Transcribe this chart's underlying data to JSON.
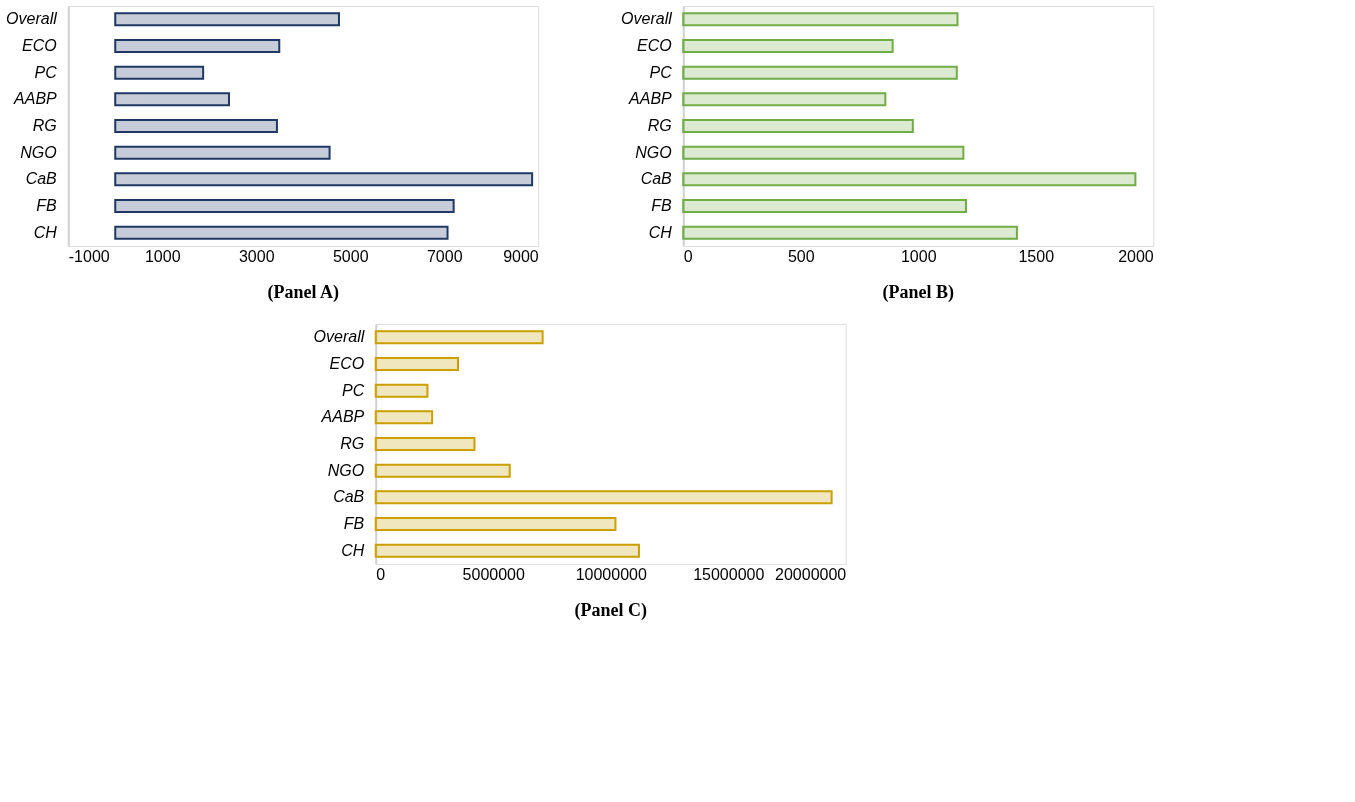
{
  "chart_data": [
    {
      "type": "bar",
      "orientation": "horizontal",
      "annotations": [
        "(Panel A)"
      ],
      "categories": [
        "Overall",
        "ECO",
        "PC",
        "AABP",
        "RG",
        "NGO",
        "CaB",
        "FB",
        "CH"
      ],
      "series": [
        {
          "color": "#203864",
          "values": [
            4760,
            3490,
            1870,
            2420,
            3440,
            4560,
            8870,
            7200,
            7070
          ]
        }
      ],
      "xlim": [
        -1000,
        9000
      ],
      "xticks": [
        -1000,
        1000,
        3000,
        5000,
        7000,
        9000
      ],
      "grid": false,
      "legend": false
    },
    {
      "type": "bar",
      "orientation": "horizontal",
      "annotations": [
        "(Panel B)"
      ],
      "categories": [
        "Overall",
        "ECO",
        "PC",
        "AABP",
        "RG",
        "NGO",
        "CaB",
        "FB",
        "CH"
      ],
      "series": [
        {
          "color": "#70ad47",
          "values": [
            1167,
            891,
            1164,
            860,
            977,
            1192,
            1924,
            1203,
            1420
          ]
        }
      ],
      "xlim": [
        0,
        2000
      ],
      "xticks": [
        0,
        500,
        1000,
        1500,
        2000
      ],
      "grid": false,
      "legend": false
    },
    {
      "type": "bar",
      "orientation": "horizontal",
      "annotations": [
        "(Panel C)"
      ],
      "categories": [
        "Overall",
        "ECO",
        "PC",
        "AABP",
        "RG",
        "NGO",
        "CaB",
        "FB",
        "CH"
      ],
      "series": [
        {
          "color": "#c9a000",
          "values": [
            7100000,
            3500000,
            2200000,
            2400000,
            4200000,
            5700000,
            19400000,
            10200000,
            11200000
          ]
        }
      ],
      "xlim": [
        0,
        20000000
      ],
      "xticks": [
        0,
        5000000,
        10000000,
        15000000,
        20000000
      ],
      "grid": false,
      "legend": false
    }
  ]
}
